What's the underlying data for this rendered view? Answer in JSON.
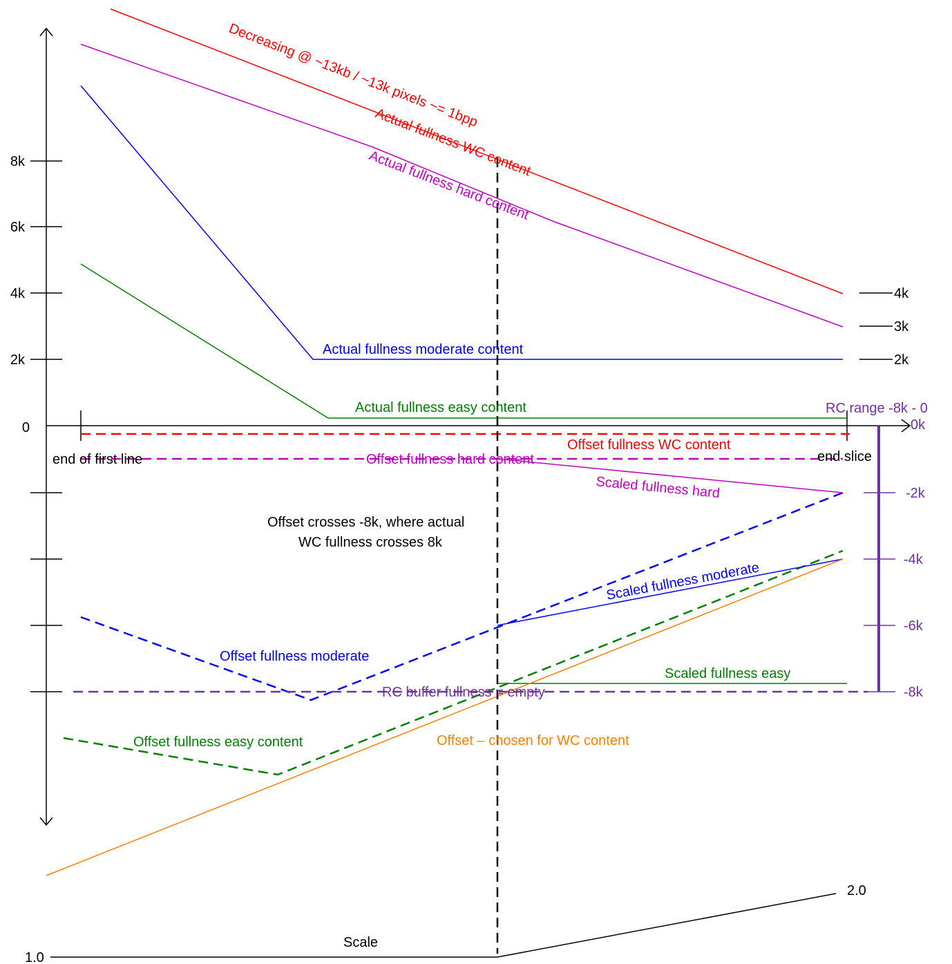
{
  "colors": {
    "wc": "#ff0000",
    "hard": "#c000c0",
    "moderate": "#0000ff",
    "easy": "#008000",
    "offset": "#ff7f00",
    "rc": "#7030a0",
    "axis": "#000000"
  },
  "axis_left": {
    "ticks": {
      "k8": "8k",
      "k6": "6k",
      "k4": "4k",
      "k2": "2k",
      "zero": "0"
    },
    "scale_start": "1.0"
  },
  "axis_right": {
    "upper": {
      "k4": "4k",
      "k3": "3k",
      "k2": "2k"
    },
    "lower": {
      "k0": "0k",
      "m2": "-2k",
      "m4": "-4k",
      "m6": "-6k",
      "m8": "-8k"
    }
  },
  "markers": {
    "end_first_line": "end of first line",
    "end_slice": "end slice",
    "scale": "Scale",
    "scale_end": "2.0"
  },
  "labels": {
    "decreasing": "Decreasing @ ~13kb / ~13k pixels ~= 1bpp",
    "actual_wc": "Actual fullness WC content",
    "actual_hard": "Actual fullness hard content",
    "actual_moderate": "Actual fullness moderate content",
    "actual_easy": "Actual fullness easy content",
    "rc_range": "RC range -8k - 0",
    "offset_wc": "Offset fullness WC content",
    "offset_hard": "Offset fullness hard content",
    "scaled_hard": "Scaled fullness hard",
    "offset_crosses_1": "Offset crosses -8k, where actual",
    "offset_crosses_2": "WC fullness crosses 8k",
    "scaled_moderate": "Scaled fullness moderate",
    "offset_moderate": "Offset fullness moderate",
    "scaled_easy": "Scaled fullness easy",
    "rc_empty": "RC buffer fullness =  empty",
    "offset_easy": "Offset fullness easy content",
    "offset_chosen": "Offset –  chosen for WC content"
  }
}
